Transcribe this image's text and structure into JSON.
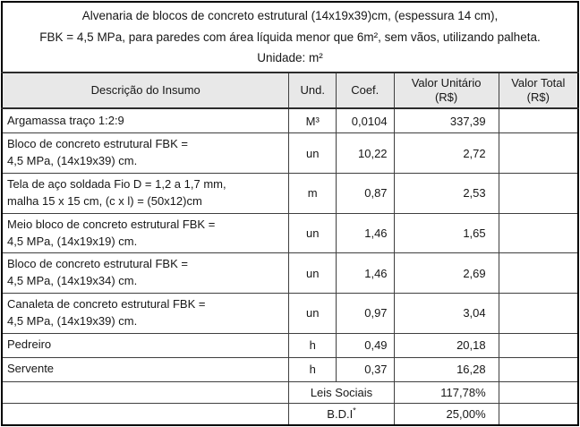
{
  "title": {
    "text": "Alvenaria de blocos de concreto estrutural (14x19x39)cm, (espessura 14 cm),\nFBK = 4,5 MPa, para paredes com área líquida menor que 6m², sem vãos, utilizando palheta.\nUnidade: m²"
  },
  "columns": {
    "descricao": "Descrição do Insumo",
    "und": "Und.",
    "coef": "Coef.",
    "valor_unitario": "Valor Unitário\n(R$)",
    "valor_total": "Valor Total\n(R$)"
  },
  "rows": [
    {
      "descricao": "Argamassa traço 1:2:9",
      "und": "M³",
      "coef": "0,0104",
      "valor_unitario": "337,39",
      "valor_total": ""
    },
    {
      "descricao": "Bloco de concreto estrutural FBK =\n4,5 MPa, (14x19x39) cm.",
      "und": "un",
      "coef": "10,22",
      "valor_unitario": "2,72",
      "valor_total": ""
    },
    {
      "descricao": "Tela de aço soldada Fio D = 1,2 a 1,7 mm,\nmalha 15 x 15 cm, (c x l) = (50x12)cm",
      "und": "m",
      "coef": "0,87",
      "valor_unitario": "2,53",
      "valor_total": ""
    },
    {
      "descricao": "Meio bloco de concreto estrutural FBK =\n4,5 MPa, (14x19x19) cm.",
      "und": "un",
      "coef": "1,46",
      "valor_unitario": "1,65",
      "valor_total": ""
    },
    {
      "descricao": "Bloco de concreto estrutural FBK =\n4,5 MPa, (14x19x34) cm.",
      "und": "un",
      "coef": "1,46",
      "valor_unitario": "2,69",
      "valor_total": ""
    },
    {
      "descricao": "Canaleta de concreto estrutural FBK =\n4,5 MPa, (14x19x39) cm.",
      "und": "un",
      "coef": "0,97",
      "valor_unitario": "3,04",
      "valor_total": ""
    },
    {
      "descricao": "Pedreiro",
      "und": "h",
      "coef": "0,49",
      "valor_unitario": "20,18",
      "valor_total": ""
    },
    {
      "descricao": "Servente",
      "und": "h",
      "coef": "0,37",
      "valor_unitario": "16,28",
      "valor_total": ""
    }
  ],
  "footer": [
    {
      "label": "Leis Sociais",
      "sup": "",
      "value": "117,78%",
      "total": ""
    },
    {
      "label": "B.D.I",
      "sup": "*",
      "value": "25,00%",
      "total": ""
    }
  ],
  "colors": {
    "header_background": "#e8e8e8",
    "border_inner": "#3f3f3f",
    "border_outer": "#000000",
    "text": "#171717"
  }
}
